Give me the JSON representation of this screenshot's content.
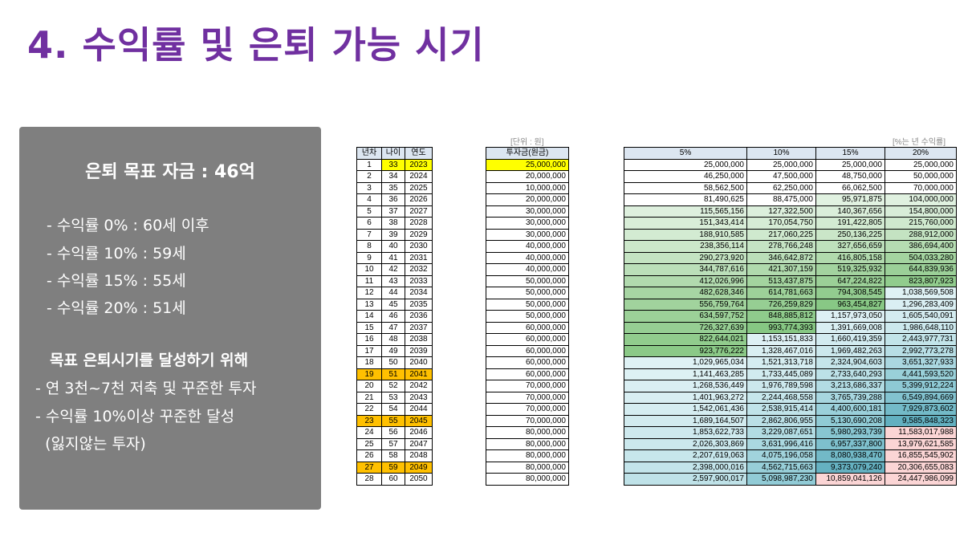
{
  "title": "4. 수익률 및 은퇴 가능 시기",
  "panel": {
    "goal": "은퇴 목표 자금 : 46억",
    "rates": [
      "- 수익률    0% : 60세 이후",
      "- 수익률 10% : 59세",
      "- 수익률 15% : 55세",
      "- 수익률 20% : 51세"
    ],
    "heading": "목표 은퇴시기를 달성하기 위해",
    "tips": [
      "- 연 3천~7천 저축 및 꾸준한 투자",
      "- 수익률 10%이상 꾸준한 달성",
      "  (잃지않는 투자)"
    ]
  },
  "notes": {
    "unit": "[단위 : 원]",
    "rate": "[%는 년 수익률]"
  },
  "colors": {
    "accent": "#7030a0",
    "highlight_yellow": "#ffff00",
    "highlight_orange": "#ffc000",
    "header_bg": "#dce6f1"
  },
  "table_years": {
    "headers": [
      "년차",
      "나이",
      "연도"
    ],
    "rows": [
      [
        "1",
        "33",
        "2023"
      ],
      [
        "2",
        "34",
        "2024"
      ],
      [
        "3",
        "35",
        "2025"
      ],
      [
        "4",
        "36",
        "2026"
      ],
      [
        "5",
        "37",
        "2027"
      ],
      [
        "6",
        "38",
        "2028"
      ],
      [
        "7",
        "39",
        "2029"
      ],
      [
        "8",
        "40",
        "2030"
      ],
      [
        "9",
        "41",
        "2031"
      ],
      [
        "10",
        "42",
        "2032"
      ],
      [
        "11",
        "43",
        "2033"
      ],
      [
        "12",
        "44",
        "2034"
      ],
      [
        "13",
        "45",
        "2035"
      ],
      [
        "14",
        "46",
        "2036"
      ],
      [
        "15",
        "47",
        "2037"
      ],
      [
        "16",
        "48",
        "2038"
      ],
      [
        "17",
        "49",
        "2039"
      ],
      [
        "18",
        "50",
        "2040"
      ],
      [
        "19",
        "51",
        "2041"
      ],
      [
        "20",
        "52",
        "2042"
      ],
      [
        "21",
        "53",
        "2043"
      ],
      [
        "22",
        "54",
        "2044"
      ],
      [
        "23",
        "55",
        "2045"
      ],
      [
        "24",
        "56",
        "2046"
      ],
      [
        "25",
        "57",
        "2047"
      ],
      [
        "26",
        "58",
        "2048"
      ],
      [
        "27",
        "59",
        "2049"
      ],
      [
        "28",
        "60",
        "2050"
      ]
    ],
    "highlight_rows": [
      19,
      23,
      27
    ]
  },
  "table_invest": {
    "header": "투자금(원금)",
    "values": [
      "25,000,000",
      "20,000,000",
      "10,000,000",
      "20,000,000",
      "30,000,000",
      "30,000,000",
      "30,000,000",
      "40,000,000",
      "40,000,000",
      "40,000,000",
      "50,000,000",
      "50,000,000",
      "50,000,000",
      "50,000,000",
      "60,000,000",
      "60,000,000",
      "60,000,000",
      "60,000,000",
      "60,000,000",
      "70,000,000",
      "70,000,000",
      "70,000,000",
      "70,000,000",
      "80,000,000",
      "80,000,000",
      "80,000,000",
      "80,000,000",
      "80,000,000"
    ]
  },
  "table_returns": {
    "headers": [
      "5%",
      "10%",
      "15%",
      "20%"
    ],
    "rows": [
      [
        "25,000,000",
        "25,000,000",
        "25,000,000",
        "25,000,000"
      ],
      [
        "46,250,000",
        "47,500,000",
        "48,750,000",
        "50,000,000"
      ],
      [
        "58,562,500",
        "62,250,000",
        "66,062,500",
        "70,000,000"
      ],
      [
        "81,490,625",
        "88,475,000",
        "95,971,875",
        "104,000,000"
      ],
      [
        "115,565,156",
        "127,322,500",
        "140,367,656",
        "154,800,000"
      ],
      [
        "151,343,414",
        "170,054,750",
        "191,422,805",
        "215,760,000"
      ],
      [
        "188,910,585",
        "217,060,225",
        "250,136,225",
        "288,912,000"
      ],
      [
        "238,356,114",
        "278,766,248",
        "327,656,659",
        "386,694,400"
      ],
      [
        "290,273,920",
        "346,642,872",
        "416,805,158",
        "504,033,280"
      ],
      [
        "344,787,616",
        "421,307,159",
        "519,325,932",
        "644,839,936"
      ],
      [
        "412,026,996",
        "513,437,875",
        "647,224,822",
        "823,807,923"
      ],
      [
        "482,628,346",
        "614,781,663",
        "794,308,545",
        "1,038,569,508"
      ],
      [
        "556,759,764",
        "726,259,829",
        "963,454,827",
        "1,296,283,409"
      ],
      [
        "634,597,752",
        "848,885,812",
        "1,157,973,050",
        "1,605,540,091"
      ],
      [
        "726,327,639",
        "993,774,393",
        "1,391,669,008",
        "1,986,648,110"
      ],
      [
        "822,644,021",
        "1,153,151,833",
        "1,660,419,359",
        "2,443,977,731"
      ],
      [
        "923,776,222",
        "1,328,467,016",
        "1,969,482,263",
        "2,992,773,278"
      ],
      [
        "1,029,965,034",
        "1,521,313,718",
        "2,324,904,603",
        "3,651,327,933"
      ],
      [
        "1,141,463,285",
        "1,733,445,089",
        "2,733,640,293",
        "4,441,593,520"
      ],
      [
        "1,268,536,449",
        "1,976,789,598",
        "3,213,686,337",
        "5,399,912,224"
      ],
      [
        "1,401,963,272",
        "2,244,468,558",
        "3,765,739,288",
        "6,549,894,669"
      ],
      [
        "1,542,061,436",
        "2,538,915,414",
        "4,400,600,181",
        "7,929,873,602"
      ],
      [
        "1,689,164,507",
        "2,862,806,955",
        "5,130,690,208",
        "9,585,848,323"
      ],
      [
        "1,853,622,733",
        "3,229,087,651",
        "5,980,293,739",
        "11,583,017,988"
      ],
      [
        "2,026,303,869",
        "3,631,996,416",
        "6,957,337,800",
        "13,979,621,585"
      ],
      [
        "2,207,619,063",
        "4,075,196,058",
        "8,080,938,470",
        "16,855,545,902"
      ],
      [
        "2,398,000,016",
        "4,562,715,663",
        "9,373,079,240",
        "20,306,655,083"
      ],
      [
        "2,597,900,017",
        "5,098,987,230",
        "10,859,041,126",
        "24,447,986,099"
      ]
    ]
  }
}
